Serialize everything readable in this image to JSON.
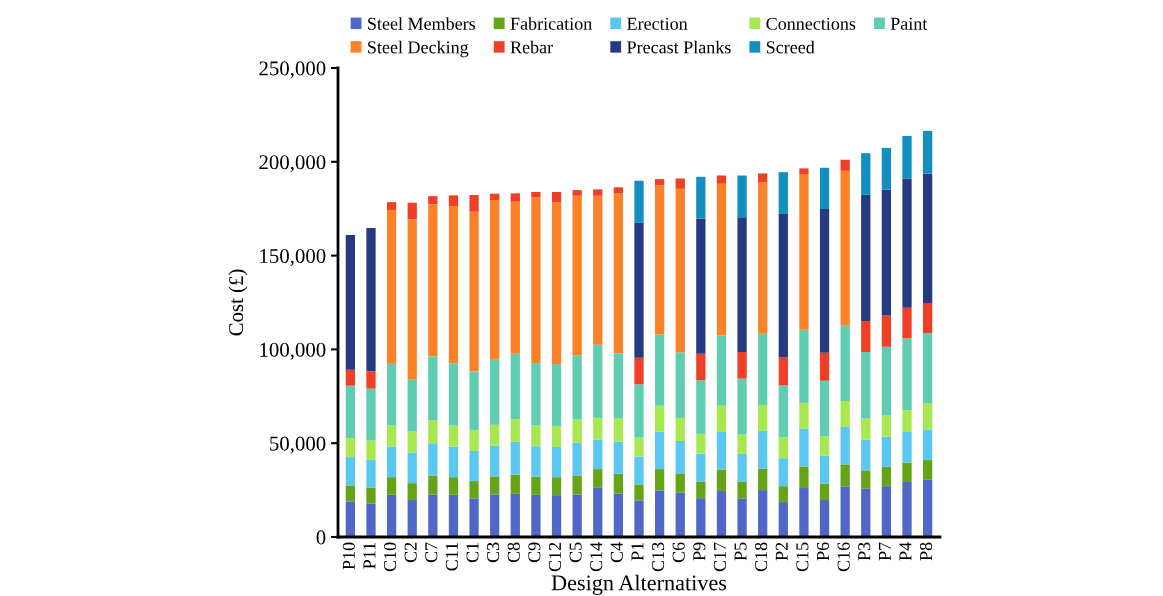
{
  "chart_data": {
    "type": "bar",
    "stacked": true,
    "xlabel": "Design Alternatives",
    "ylabel": "Cost (£)",
    "legend": "top",
    "grid": false,
    "categories": [
      "P10",
      "P11",
      "C10",
      "C2",
      "C7",
      "C11",
      "C1",
      "C3",
      "C8",
      "C9",
      "C12",
      "C5",
      "C14",
      "C4",
      "P1",
      "C13",
      "C6",
      "P9",
      "C17",
      "P5",
      "C18",
      "P2",
      "C15",
      "P6",
      "C16",
      "P3",
      "P7",
      "P4",
      "P8"
    ],
    "ylim": [
      0,
      250000
    ],
    "yticks": [
      0,
      {
        "value": 50000,
        "label": "50,000"
      },
      {
        "value": 100000,
        "label": "100,000"
      },
      {
        "value": 150000,
        "label": "150,000"
      },
      {
        "value": 200000,
        "label": "200,000"
      },
      {
        "value": 250000,
        "label": "250,000"
      }
    ],
    "series": [
      {
        "name": "Steel Members",
        "color": "#4f67c9",
        "values": [
          19000,
          17900,
          22500,
          19700,
          22500,
          22500,
          20600,
          22700,
          23000,
          22500,
          22300,
          22700,
          26200,
          23200,
          19500,
          24800,
          23600,
          20700,
          24500,
          20600,
          25000,
          18600,
          26100,
          19700,
          27000,
          25700,
          27100,
          29300,
          30700
        ]
      },
      {
        "name": "Fabrication",
        "color": "#65a317",
        "values": [
          8500,
          8300,
          9400,
          9000,
          10100,
          9400,
          9200,
          9600,
          10300,
          9600,
          9600,
          10100,
          10000,
          10500,
          8500,
          11400,
          10300,
          8900,
          11500,
          8800,
          11500,
          8500,
          11500,
          8800,
          11700,
          9800,
          10300,
          10400,
          10300
        ]
      },
      {
        "name": "Erection",
        "color": "#5ac8f0",
        "values": [
          15100,
          14900,
          16300,
          16300,
          17400,
          16300,
          16100,
          16300,
          17400,
          16300,
          16100,
          17600,
          15800,
          17200,
          14900,
          20000,
          17300,
          14900,
          20000,
          14900,
          20100,
          14900,
          20000,
          14800,
          20000,
          16300,
          16100,
          16300,
          16400
        ]
      },
      {
        "name": "Connections",
        "color": "#a8e84f",
        "values": [
          10100,
          10300,
          11200,
          11200,
          12100,
          11200,
          11200,
          11200,
          12100,
          11000,
          11200,
          12200,
          11500,
          12200,
          10100,
          13800,
          12300,
          10500,
          14000,
          10300,
          13800,
          11200,
          13900,
          10400,
          13800,
          11300,
          11400,
          11600,
          13700
        ]
      },
      {
        "name": "Paint",
        "color": "#5ecdb0",
        "values": [
          28000,
          27700,
          33000,
          27800,
          34200,
          33200,
          31200,
          34700,
          34900,
          33300,
          33000,
          34200,
          39000,
          34800,
          28400,
          38000,
          34900,
          28500,
          37400,
          29800,
          37900,
          27700,
          39000,
          29600,
          40300,
          35500,
          36500,
          38300,
          37600
        ]
      },
      {
        "name": "Steel Decking",
        "color": "#fd8126",
        "values": [
          null,
          null,
          81900,
          85300,
          81000,
          83800,
          85100,
          85100,
          81000,
          88200,
          86200,
          85100,
          79400,
          85300,
          null,
          79400,
          87200,
          null,
          80900,
          null,
          80900,
          null,
          82800,
          null,
          82400,
          null,
          null,
          null,
          null
        ]
      },
      {
        "name": "Rebar",
        "color": "#ee4026",
        "values": [
          8500,
          9200,
          4200,
          8900,
          4400,
          5700,
          8900,
          3400,
          4500,
          3000,
          5500,
          3000,
          3400,
          3200,
          14200,
          3400,
          5500,
          14200,
          4400,
          14200,
          4600,
          14800,
          3200,
          14900,
          5900,
          16600,
          16700,
          16300,
          16100
        ]
      },
      {
        "name": "Precast Planks",
        "color": "#263a80",
        "values": [
          71800,
          76400,
          null,
          null,
          null,
          null,
          null,
          null,
          null,
          null,
          null,
          null,
          null,
          null,
          72000,
          null,
          null,
          72000,
          null,
          71800,
          null,
          76500,
          null,
          76600,
          null,
          67200,
          67200,
          68900,
          69000
        ]
      },
      {
        "name": "Screed",
        "color": "#1190bf",
        "values": [
          null,
          null,
          null,
          null,
          null,
          null,
          null,
          null,
          null,
          null,
          null,
          null,
          null,
          null,
          22300,
          null,
          null,
          22300,
          null,
          22300,
          null,
          22300,
          null,
          22000,
          null,
          22200,
          22100,
          22700,
          22700
        ]
      }
    ]
  }
}
